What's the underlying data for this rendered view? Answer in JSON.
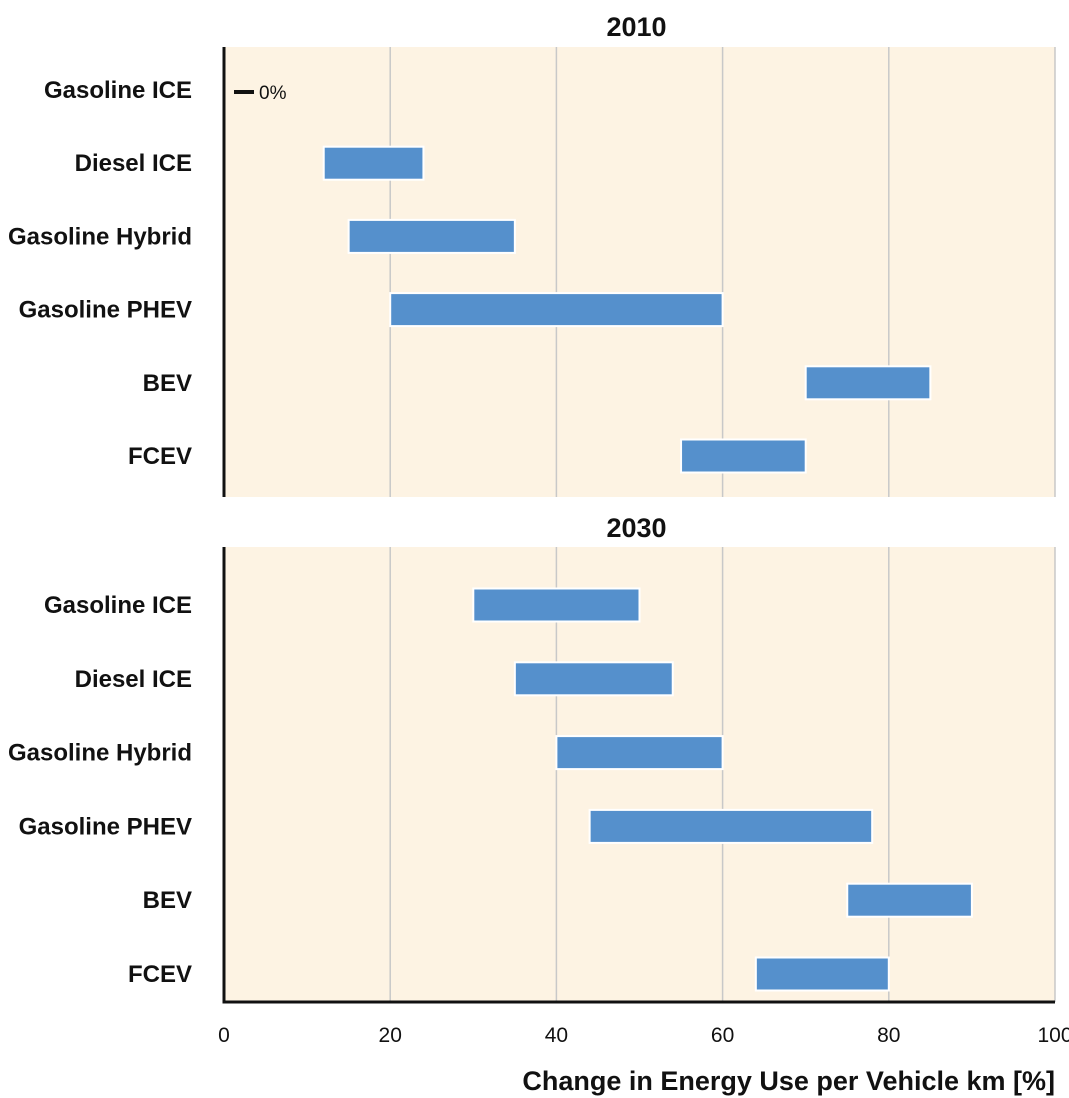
{
  "chart_data": {
    "type": "bar",
    "orientation": "horizontal",
    "bar_style": "range",
    "xlabel": "Change in Energy Use per Vehicle km [%]",
    "xlim": [
      0,
      100
    ],
    "xticks": [
      0,
      20,
      40,
      60,
      80,
      100
    ],
    "grid": true,
    "colors": {
      "bar": "#5590cc",
      "panel_bg": "#fdf3e3",
      "grid": "#c8c8c8"
    },
    "panels": [
      {
        "title": "2010",
        "categories": [
          "Gasoline ICE",
          "Diesel ICE",
          "Gasoline Hybrid",
          "Gasoline PHEV",
          "BEV",
          "FCEV"
        ],
        "ranges": [
          [
            0,
            0
          ],
          [
            12,
            24
          ],
          [
            15,
            35
          ],
          [
            20,
            60
          ],
          [
            70,
            85
          ],
          [
            55,
            70
          ]
        ],
        "annotations": [
          {
            "category": "Gasoline ICE",
            "text": "0%"
          }
        ]
      },
      {
        "title": "2030",
        "categories": [
          "Gasoline ICE",
          "Diesel ICE",
          "Gasoline Hybrid",
          "Gasoline PHEV",
          "BEV",
          "FCEV"
        ],
        "ranges": [
          [
            30,
            50
          ],
          [
            35,
            54
          ],
          [
            40,
            60
          ],
          [
            44,
            78
          ],
          [
            75,
            90
          ],
          [
            64,
            80
          ]
        ],
        "annotations": []
      }
    ]
  }
}
